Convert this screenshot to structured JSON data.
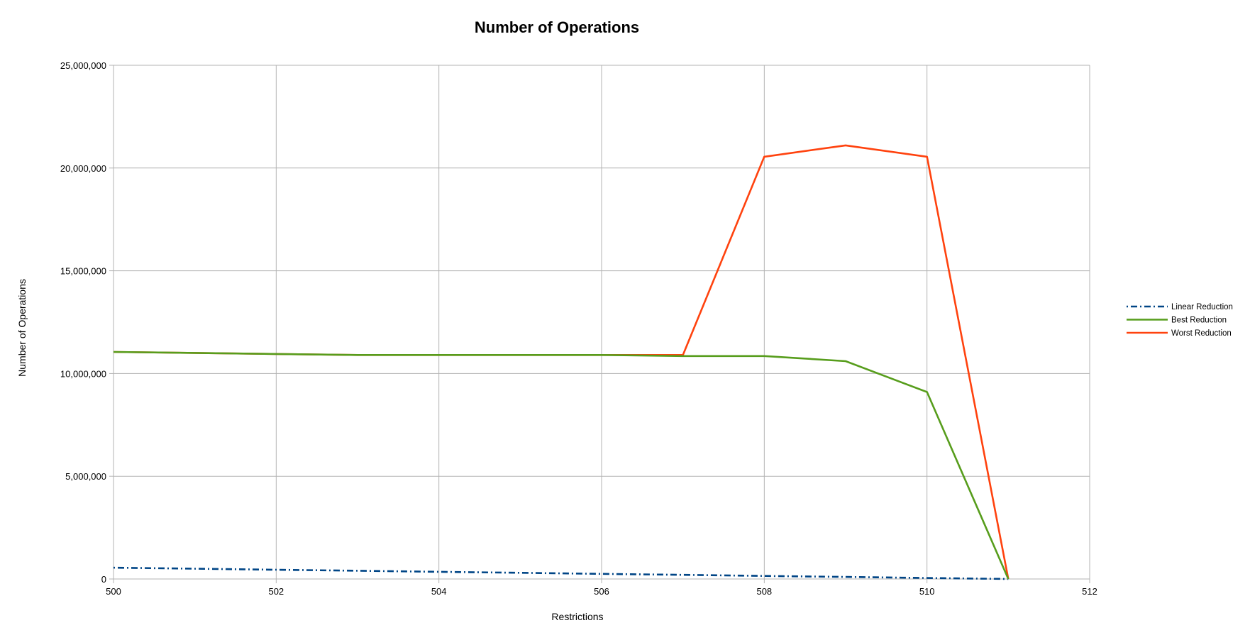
{
  "chart_data": {
    "type": "line",
    "title": "Number of Operations",
    "xlabel": "Restrictions",
    "ylabel": "Number of Operations",
    "xlim": [
      500,
      512
    ],
    "ylim": [
      0,
      25000000
    ],
    "x_ticks": [
      500,
      502,
      504,
      506,
      508,
      510,
      512
    ],
    "y_ticks": [
      0,
      5000000,
      10000000,
      15000000,
      20000000,
      25000000
    ],
    "x_tick_labels": [
      "500",
      "502",
      "504",
      "506",
      "508",
      "510",
      "512"
    ],
    "y_tick_labels": [
      "0",
      "5,000,000",
      "10,000,000",
      "15,000,000",
      "20,000,000",
      "25,000,000"
    ],
    "grid": true,
    "legend_position": "right",
    "x": [
      500,
      501,
      502,
      503,
      504,
      505,
      506,
      507,
      508,
      509,
      510,
      511
    ],
    "series": [
      {
        "name": "Linear Reduction",
        "color": "#004586",
        "style": "dash-dot",
        "values": [
          550000,
          500000,
          450000,
          400000,
          350000,
          300000,
          250000,
          200000,
          150000,
          100000,
          50000,
          0
        ]
      },
      {
        "name": "Worst Reduction",
        "color": "#ff420e",
        "style": "solid",
        "values": [
          11050000,
          11000000,
          10950000,
          10900000,
          10900000,
          10900000,
          10900000,
          10900000,
          20550000,
          21100000,
          20550000,
          0
        ]
      },
      {
        "name": "Best Reduction",
        "color": "#579d1c",
        "style": "solid",
        "values": [
          11050000,
          11000000,
          10950000,
          10900000,
          10900000,
          10900000,
          10900000,
          10850000,
          10850000,
          10600000,
          9100000,
          0
        ]
      }
    ],
    "legend_order": [
      "Linear Reduction",
      "Best Reduction",
      "Worst Reduction"
    ]
  }
}
